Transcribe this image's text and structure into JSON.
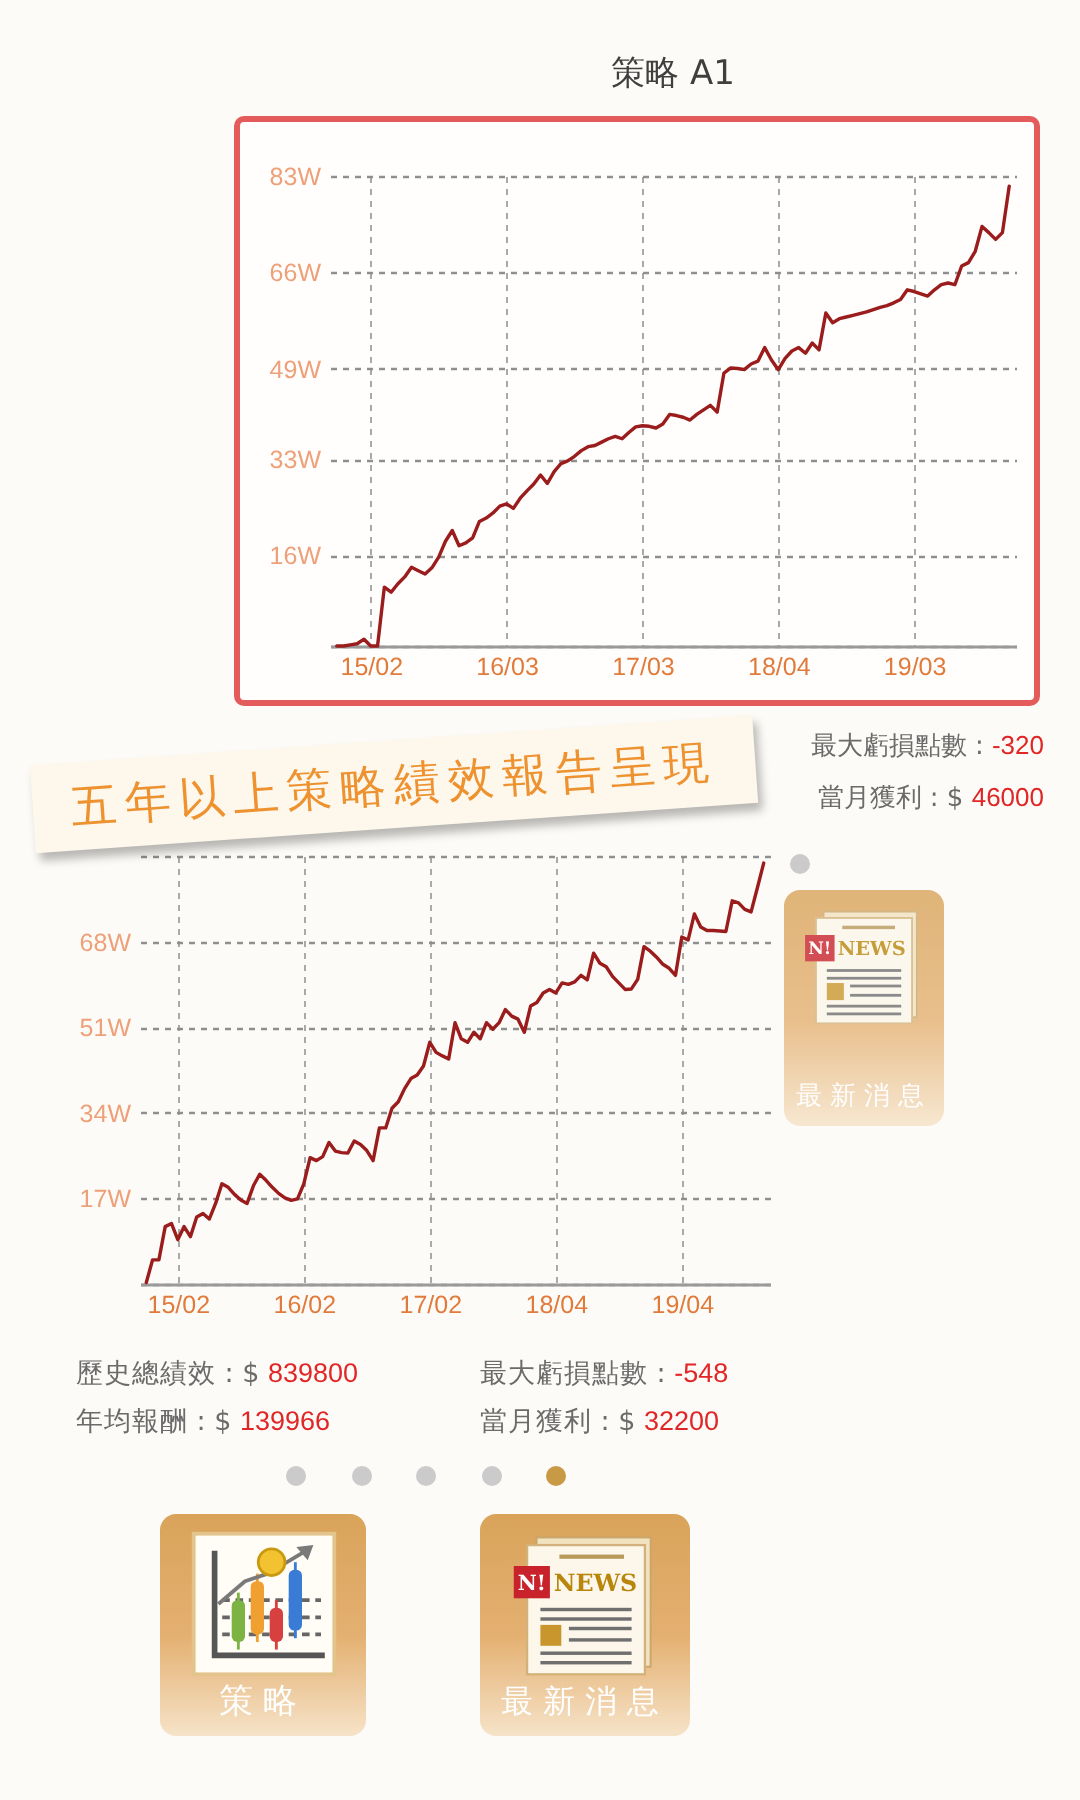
{
  "chart_data": [
    {
      "type": "line",
      "title": "策略 A1",
      "color": "#9b1c1c",
      "ylim": [
        0,
        83
      ],
      "grid": true,
      "categories": [
        null,
        null,
        null,
        null,
        null,
        "15/02",
        null,
        null,
        null,
        null,
        null,
        null,
        null,
        null,
        null,
        null,
        null,
        null,
        null,
        null,
        null,
        null,
        null,
        null,
        null,
        "16/03",
        null,
        null,
        null,
        null,
        null,
        null,
        null,
        null,
        null,
        null,
        null,
        null,
        null,
        null,
        null,
        null,
        null,
        null,
        null,
        "17/03",
        null,
        null,
        null,
        null,
        null,
        null,
        null,
        null,
        null,
        null,
        null,
        null,
        null,
        null,
        null,
        null,
        null,
        null,
        null,
        "18/04",
        null,
        null,
        null,
        null,
        null,
        null,
        null,
        null,
        null,
        null,
        null,
        null,
        null,
        null,
        null,
        null,
        null,
        null,
        null,
        "19/03",
        null,
        null,
        null,
        null,
        null,
        null,
        null,
        null,
        null,
        null,
        null,
        null,
        null,
        null
      ],
      "yticks": [
        {
          "value": 0,
          "label": null
        },
        {
          "value": 16,
          "label": "16W"
        },
        {
          "value": 33,
          "label": "33W"
        },
        {
          "value": 49,
          "label": "49W"
        },
        {
          "value": 66,
          "label": "66W"
        },
        {
          "value": 83,
          "label": "83W"
        }
      ],
      "values": [
        0,
        0,
        0.2,
        0.4,
        1.2,
        0,
        0,
        10.4,
        9.5,
        11.0,
        12.2,
        13.9,
        13.3,
        12.7,
        13.8,
        15.7,
        18.5,
        20.4,
        17.7,
        18.2,
        19.1,
        22.0,
        22.6,
        23.5,
        24.7,
        25.1,
        24.3,
        26.1,
        27.4,
        28.6,
        30.2,
        28.7,
        30.8,
        32.2,
        32.7,
        33.5,
        34.5,
        35.2,
        35.4,
        36.0,
        36.6,
        37.0,
        36.6,
        37.7,
        38.7,
        38.9,
        38.8,
        38.5,
        39.2,
        40.9,
        40.7,
        40.4,
        39.9,
        40.9,
        41.7,
        42.5,
        41.3,
        48.2,
        49.1,
        49.0,
        48.8,
        49.8,
        50.3,
        52.7,
        50.5,
        48.8,
        50.8,
        52.1,
        52.7,
        51.7,
        53.5,
        52.3,
        58.8,
        57.1,
        57.8,
        58.1,
        58.4,
        58.7,
        59.0,
        59.4,
        59.8,
        60.1,
        60.6,
        61.2,
        62.9,
        62.6,
        62.2,
        61.8,
        62.9,
        63.8,
        64.1,
        63.8,
        67.1,
        67.7,
        69.7,
        74.1,
        73.0,
        71.8,
        73.0,
        81.2
      ],
      "annotations": [
        "最大虧損點數 : -320",
        "當月獲利 : $ 46000"
      ]
    },
    {
      "type": "line",
      "color": "#9b1c1c",
      "ylim": [
        0,
        85
      ],
      "grid": true,
      "categories": [
        null,
        null,
        null,
        null,
        null,
        "15/02",
        null,
        null,
        null,
        null,
        null,
        null,
        null,
        null,
        null,
        null,
        null,
        null,
        null,
        null,
        null,
        null,
        null,
        null,
        null,
        "16/02",
        null,
        null,
        null,
        null,
        null,
        null,
        null,
        null,
        null,
        null,
        null,
        null,
        null,
        null,
        null,
        null,
        null,
        null,
        null,
        "17/02",
        null,
        null,
        null,
        null,
        null,
        null,
        null,
        null,
        null,
        null,
        null,
        null,
        null,
        null,
        null,
        null,
        null,
        null,
        null,
        "18/04",
        null,
        null,
        null,
        null,
        null,
        null,
        null,
        null,
        null,
        null,
        null,
        null,
        null,
        null,
        null,
        null,
        null,
        null,
        null,
        "19/04",
        null,
        null,
        null,
        null,
        null,
        null,
        null,
        null,
        null,
        null,
        null,
        null,
        null
      ],
      "yticks": [
        {
          "value": 0,
          "label": null
        },
        {
          "value": 17,
          "label": "17W"
        },
        {
          "value": 34,
          "label": "34W"
        },
        {
          "value": 51,
          "label": "51W"
        },
        {
          "value": 68,
          "label": "68W"
        },
        {
          "value": 85,
          "label": null
        }
      ],
      "values": [
        0.3,
        4.8,
        4.8,
        11.4,
        12.0,
        8.8,
        11.4,
        9.4,
        13.3,
        14.0,
        12.9,
        16.0,
        19.9,
        19.2,
        17.8,
        16.7,
        16.0,
        19.5,
        21.8,
        20.6,
        19.2,
        18.0,
        17.1,
        16.6,
        16.9,
        19.9,
        25.1,
        24.5,
        25.3,
        28.1,
        26.4,
        26.1,
        26.0,
        28.4,
        27.7,
        26.5,
        24.5,
        31.0,
        31.0,
        34.9,
        36.2,
        38.8,
        40.8,
        41.5,
        43.3,
        48.0,
        46.0,
        45.3,
        44.7,
        51.9,
        48.7,
        48.0,
        50.0,
        48.7,
        51.9,
        50.6,
        51.9,
        54.5,
        53.2,
        52.6,
        50.0,
        55.2,
        55.9,
        57.8,
        58.5,
        57.8,
        59.8,
        59.5,
        60.0,
        61.3,
        60.4,
        65.7,
        63.7,
        63.0,
        61.1,
        59.8,
        58.5,
        58.6,
        60.5,
        67.0,
        66.1,
        64.9,
        63.5,
        62.7,
        61.3,
        68.9,
        68.3,
        73.5,
        70.9,
        70.2,
        70.2,
        70.1,
        70.0,
        76.1,
        75.7,
        74.4,
        73.9,
        78.7,
        83.6
      ],
      "annotations": [
        "歷史總績效 : $ 839800",
        "年均報酬 : $ 139966",
        "最大虧損點數 : -548",
        "當月獲利 : $ 32200"
      ]
    },
    {
      "type": "other",
      "title": "五年以上策略績效報告呈現",
      "annotations": [
        "N!",
        "NEWS",
        "最新消息",
        "策略",
        "N!",
        "NEWS",
        "最新消息"
      ]
    }
  ]
}
